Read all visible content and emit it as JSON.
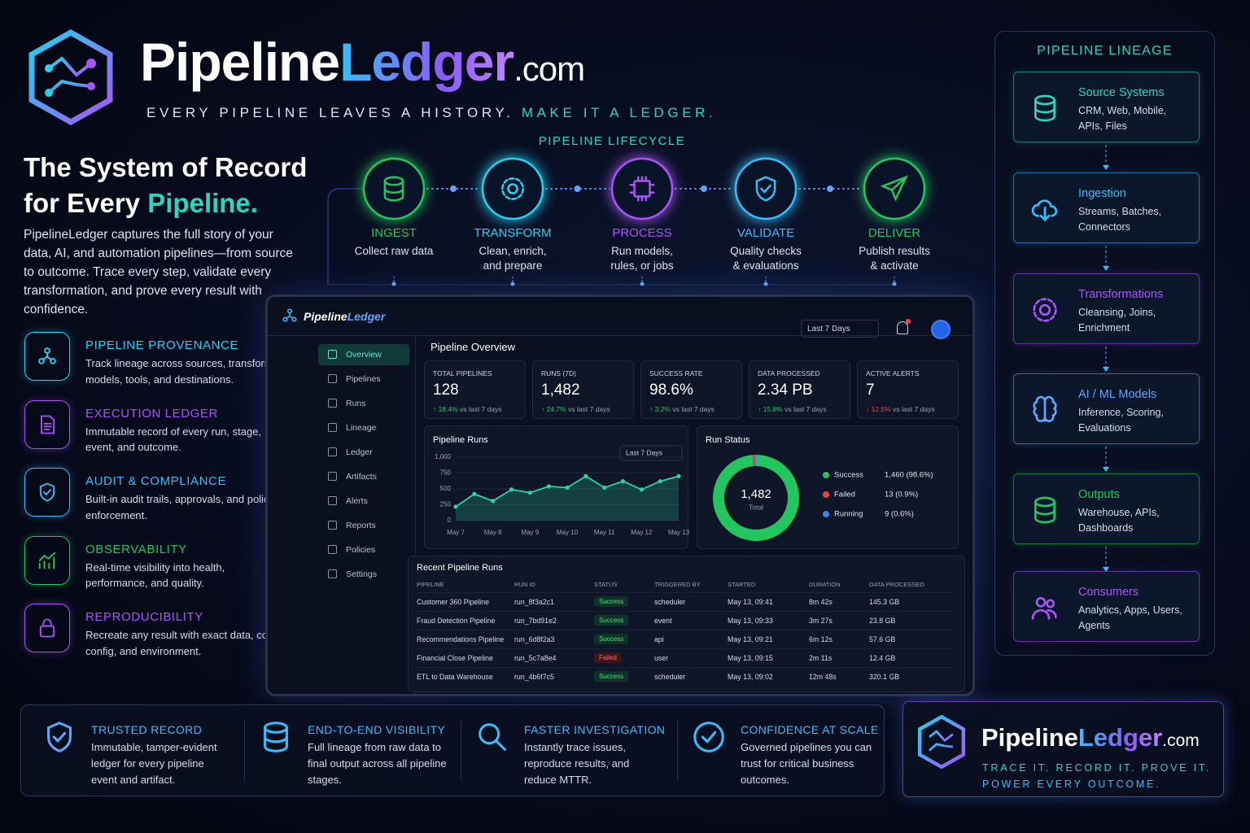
{
  "header": {
    "brand_main": "Pipeline",
    "brand_accent": "Ledger",
    "brand_tld": ".com",
    "tagline_a": "EVERY PIPELINE LEAVES A HISTORY.",
    "tagline_b": "MAKE IT A LEDGER."
  },
  "intro": {
    "title_a": "The System of Record",
    "title_b": "for Every",
    "title_accent": "Pipeline.",
    "body": "PipelineLedger captures the full story of your data, AI, and automation pipelines—from source to outcome. Trace every step, validate every transformation, and prove every result with confidence."
  },
  "features": [
    {
      "title": "PIPELINE PROVENANCE",
      "text": "Track lineage across sources, transforms, models, tools, and destinations."
    },
    {
      "title": "EXECUTION LEDGER",
      "text": "Immutable record of every run, stage, event, and outcome."
    },
    {
      "title": "AUDIT & COMPLIANCE",
      "text": "Built-in audit trails, approvals, and policy enforcement."
    },
    {
      "title": "OBSERVABILITY",
      "text": "Real-time visibility into health, performance, and quality."
    },
    {
      "title": "REPRODUCIBILITY",
      "text": "Recreate any result with exact data, code, config, and environment."
    }
  ],
  "lifecycle": {
    "title": "PIPELINE LIFECYCLE",
    "stages": [
      {
        "name": "INGEST",
        "desc": "Collect raw data"
      },
      {
        "name": "TRANSFORM",
        "desc": "Clean, enrich, and prepare"
      },
      {
        "name": "PROCESS",
        "desc": "Run models, rules, or jobs"
      },
      {
        "name": "VALIDATE",
        "desc": "Quality checks & evaluations"
      },
      {
        "name": "DELIVER",
        "desc": "Publish results & activate"
      }
    ]
  },
  "lineage": {
    "title": "PIPELINE LINEAGE",
    "nodes": [
      {
        "name": "Source Systems",
        "desc": "CRM, Web, Mobile, APIs, Files"
      },
      {
        "name": "Ingestion",
        "desc": "Streams, Batches, Connectors"
      },
      {
        "name": "Transformations",
        "desc": "Cleansing, Joins, Enrichment"
      },
      {
        "name": "AI / ML Models",
        "desc": "Inference, Scoring, Evaluations"
      },
      {
        "name": "Outputs",
        "desc": "Warehouse, APIs, Dashboards"
      },
      {
        "name": "Consumers",
        "desc": "Analytics, Apps, Users, Agents"
      }
    ]
  },
  "dashboard": {
    "brand_main": "Pipeline",
    "brand_accent": "Ledger",
    "range": "Last 7 Days",
    "nav": [
      "Overview",
      "Pipelines",
      "Runs",
      "Lineage",
      "Ledger",
      "Artifacts",
      "Alerts",
      "Reports",
      "Policies",
      "Settings"
    ],
    "section_title": "Pipeline Overview",
    "kpis": [
      {
        "label": "TOTAL PIPELINES",
        "value": "128",
        "delta": "↑ 18.4%",
        "note": "vs last 7 days"
      },
      {
        "label": "RUNS (7D)",
        "value": "1,482",
        "delta": "↑ 24.7%",
        "note": "vs last 7 days"
      },
      {
        "label": "SUCCESS RATE",
        "value": "98.6%",
        "delta": "↑ 3.2%",
        "note": "vs last 7 days"
      },
      {
        "label": "DATA PROCESSED",
        "value": "2.34 PB",
        "delta": "↑ 15.8%",
        "note": "vs last 7 days"
      },
      {
        "label": "ACTIVE ALERTS",
        "value": "7",
        "delta": "↓ 12.5%",
        "note": "vs last 7 days"
      }
    ],
    "runs_chart": {
      "type": "line",
      "title": "Pipeline Runs",
      "range": "Last 7 Days",
      "color": "#2dd4a0",
      "categories": [
        "May 7",
        null,
        "May 8",
        null,
        "May 9",
        null,
        "May 10",
        null,
        "May 11",
        null,
        "May 12",
        null,
        "May 13"
      ],
      "values": [
        220,
        420,
        310,
        490,
        440,
        540,
        520,
        700,
        520,
        620,
        490,
        620,
        700
      ],
      "ylim": [
        0,
        1000
      ],
      "yticks": [
        0,
        250,
        500,
        750,
        {
          "value": 1000,
          "label": "1,000"
        }
      ]
    },
    "run_status": {
      "type": "pie",
      "title": "Run Status",
      "total_value": "1,482",
      "total_label": "Total",
      "categories": [
        "Success",
        "Failed",
        "Running"
      ],
      "values": [
        1460,
        13,
        9
      ],
      "value_labels": [
        "1,460 (98.6%)",
        "13 (0.9%)",
        "9 (0.6%)"
      ],
      "colors": [
        "#22c55e",
        "#ef4444",
        "#3b82f6"
      ]
    },
    "recent": {
      "title": "Recent Pipeline Runs",
      "columns": [
        "PIPELINE",
        "RUN ID",
        "STATUS",
        "TRIGGERED BY",
        "STARTED",
        "DURATION",
        "DATA PROCESSED"
      ],
      "rows": [
        [
          "Customer 360 Pipeline",
          "run_8f3a2c1",
          "Success",
          "scheduler",
          "May 13, 09:41",
          "8m 42s",
          "145.3 GB"
        ],
        [
          "Fraud Detection Pipeline",
          "run_7bd91e2",
          "Success",
          "event",
          "May 13, 09:33",
          "3m 27s",
          "23.8 GB"
        ],
        [
          "Recommendations Pipeline",
          "run_6d8f2a3",
          "Success",
          "api",
          "May 13, 09:21",
          "6m 12s",
          "57.6 GB"
        ],
        [
          "Financial Close Pipeline",
          "run_5c7a8e4",
          "Failed",
          "user",
          "May 13, 09:15",
          "2m 11s",
          "12.4 GB"
        ],
        [
          "ETL to Data Warehouse",
          "run_4b6f7c5",
          "Success",
          "scheduler",
          "May 13, 09:02",
          "12m 48s",
          "320.1 GB"
        ]
      ]
    }
  },
  "benefits": [
    {
      "title": "TRUSTED RECORD",
      "text": "Immutable, tamper-evident ledger for every pipeline event and artifact."
    },
    {
      "title": "END-TO-END VISIBILITY",
      "text": "Full lineage from raw data to final output across all pipeline stages."
    },
    {
      "title": "FASTER INVESTIGATION",
      "text": "Instantly trace issues, reproduce results, and reduce MTTR."
    },
    {
      "title": "CONFIDENCE AT SCALE",
      "text": "Governed pipelines you can trust for critical business outcomes."
    }
  ],
  "footer_brand": {
    "brand_main": "Pipeline",
    "brand_accent": "Ledger",
    "brand_tld": ".com",
    "tagline_a": "TRACE IT. RECORD IT. PROVE IT.",
    "tagline_b": "POWER EVERY OUTCOME."
  }
}
